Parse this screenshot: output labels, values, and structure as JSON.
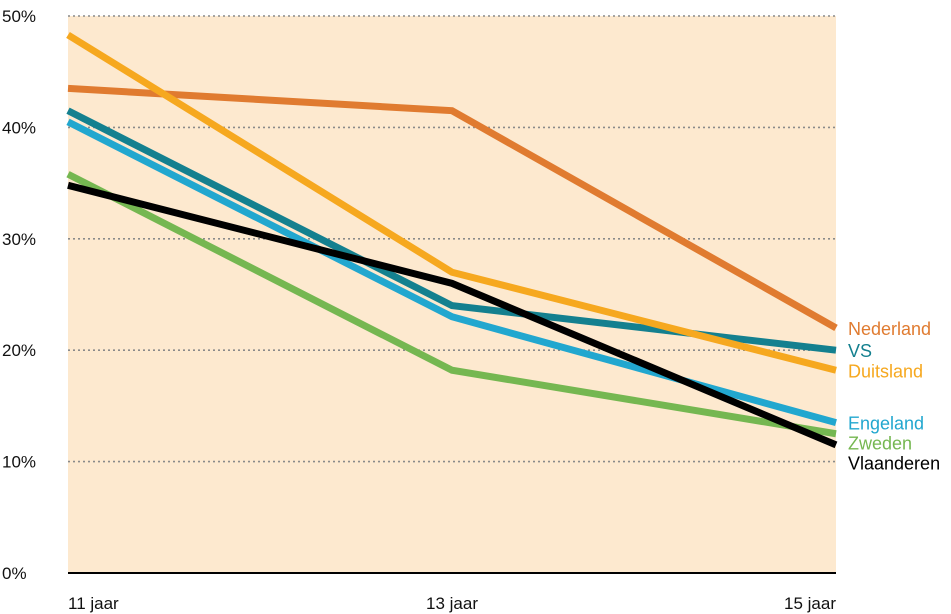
{
  "chart_data": {
    "type": "line",
    "title": "",
    "xlabel": "",
    "ylabel": "",
    "categories": [
      "11 jaar",
      "13 jaar",
      "15 jaar"
    ],
    "ylim": [
      0,
      50
    ],
    "y_ticks": [
      "0%",
      "10%",
      "20%",
      "30%",
      "40%",
      "50%"
    ],
    "grid": "horizontal dotted",
    "background_color": "#fde9cf",
    "legend": "labels at right end of lines",
    "series": [
      {
        "name": "Nederland",
        "color": "#e07b30",
        "values": [
          43.5,
          41.5,
          22.0
        ]
      },
      {
        "name": "VS",
        "color": "#14808f",
        "values": [
          41.5,
          24.0,
          20.0
        ]
      },
      {
        "name": "Duitsland",
        "color": "#f6a81f",
        "values": [
          48.3,
          27.0,
          18.2
        ]
      },
      {
        "name": "Engeland",
        "color": "#22a7cf",
        "values": [
          40.5,
          23.0,
          13.5
        ]
      },
      {
        "name": "Zweden",
        "color": "#75b751",
        "values": [
          35.8,
          18.2,
          12.5
        ]
      },
      {
        "name": "Vlaanderen",
        "color": "#000000",
        "values": [
          34.8,
          26.0,
          11.5
        ]
      }
    ]
  }
}
